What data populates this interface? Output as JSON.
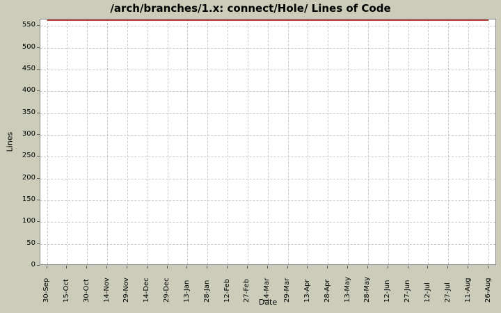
{
  "chart_data": {
    "type": "line",
    "title": "/arch/branches/1.x: connect/Hole/ Lines of Code",
    "xlabel": "Date",
    "ylabel": "Lines",
    "x": [
      "30-Sep",
      "15-Oct",
      "30-Oct",
      "14-Nov",
      "29-Nov",
      "14-Dec",
      "29-Dec",
      "13-Jan",
      "28-Jan",
      "12-Feb",
      "27-Feb",
      "14-Mar",
      "29-Mar",
      "13-Apr",
      "28-Apr",
      "13-May",
      "28-May",
      "12-Jun",
      "27-Jun",
      "12-Jul",
      "27-Jul",
      "11-Aug",
      "26-Aug"
    ],
    "yticks": [
      0,
      50,
      100,
      150,
      200,
      250,
      300,
      350,
      400,
      450,
      500,
      550
    ],
    "ylim": [
      0,
      565
    ],
    "grid": true,
    "grid_style": "dashed",
    "legend": "none",
    "series": [
      {
        "name": "Lines of Code",
        "color": "#bc4a40",
        "values": [
          565,
          565,
          565,
          565,
          565,
          565,
          565,
          565,
          565,
          565,
          565,
          565,
          565,
          565,
          565,
          565,
          565,
          565,
          565,
          565,
          565,
          565,
          565
        ]
      }
    ]
  },
  "colors": {
    "background": "#cbccba",
    "plot_background": "#ffffff",
    "gridline": "#c9c9c9",
    "plot_border": "#848484",
    "tick": "#5a5a5a",
    "text": "#000000"
  }
}
